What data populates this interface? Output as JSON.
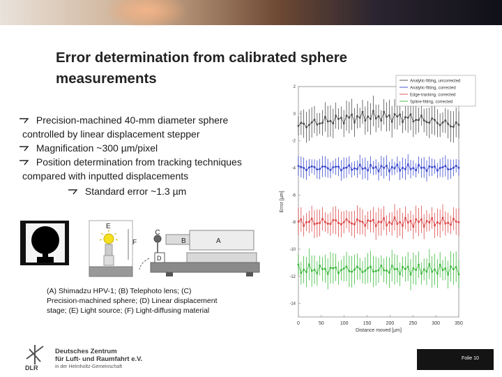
{
  "slide": {
    "title_line1": "Error determination from calibrated sphere",
    "title_line2": "measurements",
    "bullets": {
      "b1_line1": "Precision-machined 40-mm diameter sphere",
      "b1_line2": "controlled by linear displacement stepper",
      "b2": "Magnification ~300 µm/pixel",
      "b3_line1": "Position determination from tracking techniques",
      "b3_line2": "compared with inputted displacements",
      "b4": "Standard error ~1.3 µm"
    },
    "setup_labels": {
      "E": "E",
      "F": "F",
      "C": "C",
      "B": "B",
      "A": "A",
      "D": "D"
    },
    "caption_line1": "(A) Shimadzu HPV-1; (B) Telephoto lens; (C)",
    "caption_line2": "Precision-machined sphere; (D) Linear displacement",
    "caption_line3": "stage; (E) Light source; (F) Light-diffusing material",
    "logo": {
      "line1": "Deutsches Zentrum",
      "line2": "für Luft- und Raumfahrt e.V.",
      "line3": "in der Helmholtz-Gemeinschaft",
      "abbr": "DLR"
    },
    "folio": "Folie 10"
  },
  "colors": {
    "black_series": "#333333",
    "blue_series": "#2030c8",
    "red_series": "#d83030",
    "green_series": "#20b020",
    "banner_dark": "#101018"
  },
  "chart_data": {
    "type": "line",
    "xlabel": "Distance moved [µm]",
    "ylabel": "Error [µm]",
    "x_ticks": [
      0,
      50,
      100,
      150,
      200,
      250,
      300,
      350
    ],
    "xlim": [
      0,
      350
    ],
    "y_ticks": [
      "2",
      "0",
      "-2",
      "-4",
      "-6",
      "-8",
      "-10",
      "-12",
      "-14"
    ],
    "ylim": [
      -15,
      2
    ],
    "legend": [
      "Analytic-fitting, uncorrected",
      "Analytic-fitting, corrected",
      "Edge-tracking, corrected",
      "Spline-fitting, corrected"
    ],
    "legend_position": "top-right",
    "series": [
      {
        "name": "Analytic-fitting, uncorrected",
        "offset": -0.5,
        "amp": 0.9,
        "color": "#333333",
        "shape": "arc"
      },
      {
        "name": "Analytic-fitting, corrected",
        "offset": -4.0,
        "amp": 0.6,
        "color": "#2030c8",
        "shape": "flat"
      },
      {
        "name": "Edge-tracking, corrected",
        "offset": -8.0,
        "amp": 0.8,
        "color": "#d83030",
        "shape": "flat"
      },
      {
        "name": "Spline-fitting, corrected",
        "offset": -11.5,
        "amp": 0.9,
        "color": "#20b020",
        "shape": "flat"
      }
    ]
  }
}
